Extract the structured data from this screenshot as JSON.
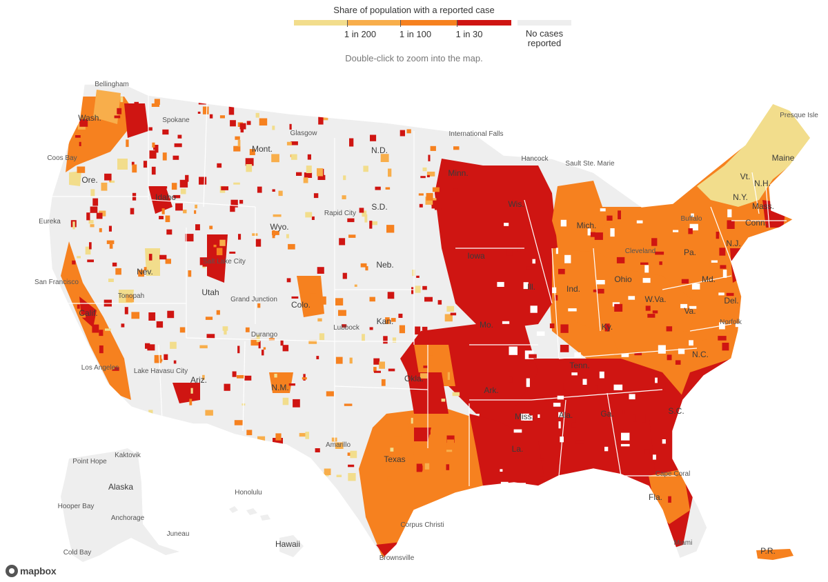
{
  "legend": {
    "title": "Share of population with a reported case",
    "ticks": [
      "1 in 200",
      "1 in 100",
      "1 in 30"
    ],
    "no_cases_label": "No cases reported",
    "colors": {
      "lowest": "#f2dd8c",
      "low": "#f8ae4b",
      "mid": "#f6811f",
      "high": "#cf1512",
      "none": "#eeeeee",
      "land": "#eeeeee",
      "border": "#ffffff"
    }
  },
  "hint": "Double-click to zoom into the map.",
  "state_labels": [
    "Wash.",
    "Ore.",
    "Calif.",
    "Idaho",
    "Nev.",
    "Utah",
    "Ariz.",
    "Mont.",
    "Wyo.",
    "Colo.",
    "N.M.",
    "N.D.",
    "S.D.",
    "Neb.",
    "Kan.",
    "Okla.",
    "Texas",
    "Minn.",
    "Iowa",
    "Mo.",
    "Ark.",
    "La.",
    "Wis.",
    "Ill.",
    "Mich.",
    "Ind.",
    "Ohio",
    "Ky.",
    "Tenn.",
    "Miss.",
    "Ala.",
    "Ga.",
    "Fla.",
    "S.C.",
    "N.C.",
    "Va.",
    "W.Va.",
    "Pa.",
    "N.Y.",
    "Md.",
    "Del.",
    "N.J.",
    "Conn.",
    "Mass.",
    "Vt.",
    "N.H.",
    "Maine",
    "Alaska",
    "Hawaii",
    "P.R."
  ],
  "place_labels": [
    "Bellingham",
    "Spokane",
    "Coos Bay",
    "Eureka",
    "San Francisco",
    "Tonopah",
    "Salt Lake City",
    "Grand Junction",
    "Durango",
    "Los Angeles",
    "Lake Havasu City",
    "Glasgow",
    "Rapid City",
    "International Falls",
    "Hancock",
    "Sault Ste. Marie",
    "Presque Isle",
    "Buffalo",
    "Cleveland",
    "Lubbock",
    "Point Hope",
    "Kaktovik",
    "Hooper Bay",
    "Anchorage",
    "Juneau",
    "Cold Bay",
    "Honolulu",
    "Brownsville",
    "Corpus Christi",
    "Miami",
    "Cape Coral",
    "Norfolk",
    "Amarillo"
  ],
  "attribution": "mapbox"
}
